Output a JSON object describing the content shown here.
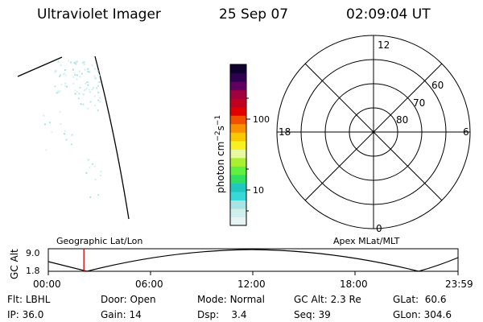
{
  "header": {
    "title": "Ultraviolet Imager",
    "date": "25 Sep 07",
    "time": "02:09:04 UT"
  },
  "colorbar": {
    "unit_text": "photon cm",
    "unit_sup1": "−2",
    "unit_mid": "s",
    "unit_sup2": "−1",
    "tick_labels": [
      "100",
      "10"
    ],
    "colors": [
      "#e8f4f4",
      "#cfeeee",
      "#a8e4e4",
      "#38d8d8",
      "#20c8c0",
      "#30e060",
      "#60f040",
      "#a8f030",
      "#e8f8a0",
      "#f8f020",
      "#f8c800",
      "#f89000",
      "#f05000",
      "#e00000",
      "#c00020",
      "#a00040",
      "#600060",
      "#300050",
      "#100030"
    ]
  },
  "polar_grid": {
    "mlt_labels": {
      "top": "12",
      "right": "6",
      "bottom": "0",
      "left": "18"
    },
    "lat_labels": [
      "60",
      "70",
      "80"
    ]
  },
  "timeline": {
    "ylabel": "GC Alt",
    "y_ticks": [
      "9.0",
      "1.8"
    ],
    "left_caption": "Geographic Lat/Lon",
    "right_caption": "Apex MLat/MLT",
    "x_ticks": [
      "00:00",
      "06:00",
      "12:00",
      "18:00",
      "23:59"
    ],
    "current_time_fraction": 0.0868
  },
  "status": {
    "flt_label": "Flt:",
    "flt_value": "LBHL",
    "door_label": "Door:",
    "door_value": "Open",
    "mode_label": "Mode:",
    "mode_value": "Normal",
    "gcalt_label": "GC Alt:",
    "gcalt_value": "2.3 Re",
    "glat_label": "GLat:",
    "glat_value": "60.6",
    "ip_label": "IP:",
    "ip_value": "36.0",
    "gain_label": "Gain:",
    "gain_value": "14",
    "dsp_label": "Dsp:",
    "dsp_value": "3.4",
    "seq_label": "Seq:",
    "seq_value": "39",
    "glon_label": "GLon:",
    "glon_value": "304.6"
  }
}
